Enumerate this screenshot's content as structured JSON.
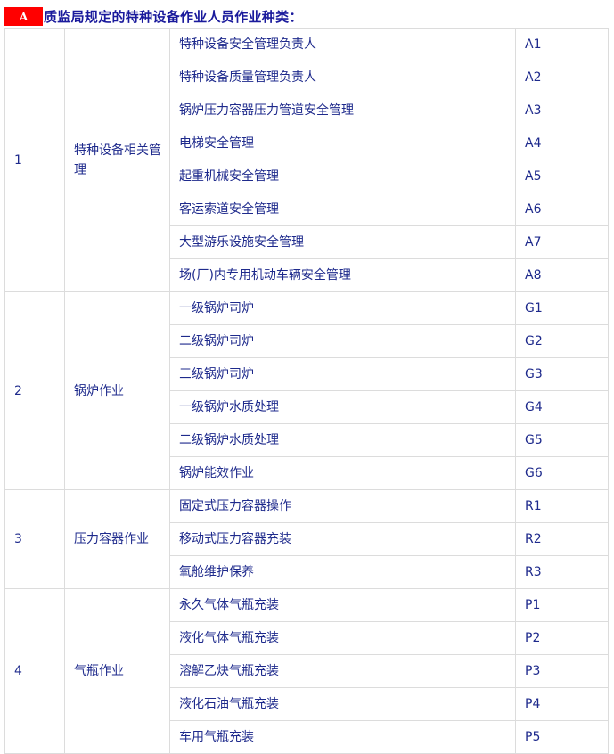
{
  "heading": {
    "badge": "A",
    "title": "质监局规定的特种设备作业人员作业种类："
  },
  "groups": [
    {
      "no": "1",
      "category": "特种设备相关管理",
      "items": [
        {
          "name": "特种设备安全管理负责人",
          "code": "A1"
        },
        {
          "name": "特种设备质量管理负责人",
          "code": "A2"
        },
        {
          "name": "锅炉压力容器压力管道安全管理",
          "code": "A3"
        },
        {
          "name": "电梯安全管理",
          "code": "A4"
        },
        {
          "name": "起重机械安全管理",
          "code": "A5"
        },
        {
          "name": "客运索道安全管理",
          "code": "A6"
        },
        {
          "name": "大型游乐设施安全管理",
          "code": "A7"
        },
        {
          "name": "场(厂)内专用机动车辆安全管理",
          "code": "A8"
        }
      ]
    },
    {
      "no": "2",
      "category": "锅炉作业",
      "items": [
        {
          "name": "一级锅炉司炉",
          "code": "G1"
        },
        {
          "name": "二级锅炉司炉",
          "code": "G2"
        },
        {
          "name": "三级锅炉司炉",
          "code": "G3"
        },
        {
          "name": "一级锅炉水质处理",
          "code": "G4"
        },
        {
          "name": "二级锅炉水质处理",
          "code": "G5"
        },
        {
          "name": "锅炉能效作业",
          "code": "G6"
        }
      ]
    },
    {
      "no": "3",
      "category": "压力容器作业",
      "items": [
        {
          "name": "固定式压力容器操作",
          "code": "R1"
        },
        {
          "name": "移动式压力容器充装",
          "code": "R2"
        },
        {
          "name": "氧舱维护保养",
          "code": "R3"
        }
      ]
    },
    {
      "no": "4",
      "category": "气瓶作业",
      "items": [
        {
          "name": "永久气体气瓶充装",
          "code": "P1"
        },
        {
          "name": "液化气体气瓶充装",
          "code": "P2"
        },
        {
          "name": "溶解乙炔气瓶充装",
          "code": "P3"
        },
        {
          "name": "液化石油气瓶充装",
          "code": "P4"
        },
        {
          "name": "车用气瓶充装",
          "code": "P5"
        }
      ]
    }
  ]
}
